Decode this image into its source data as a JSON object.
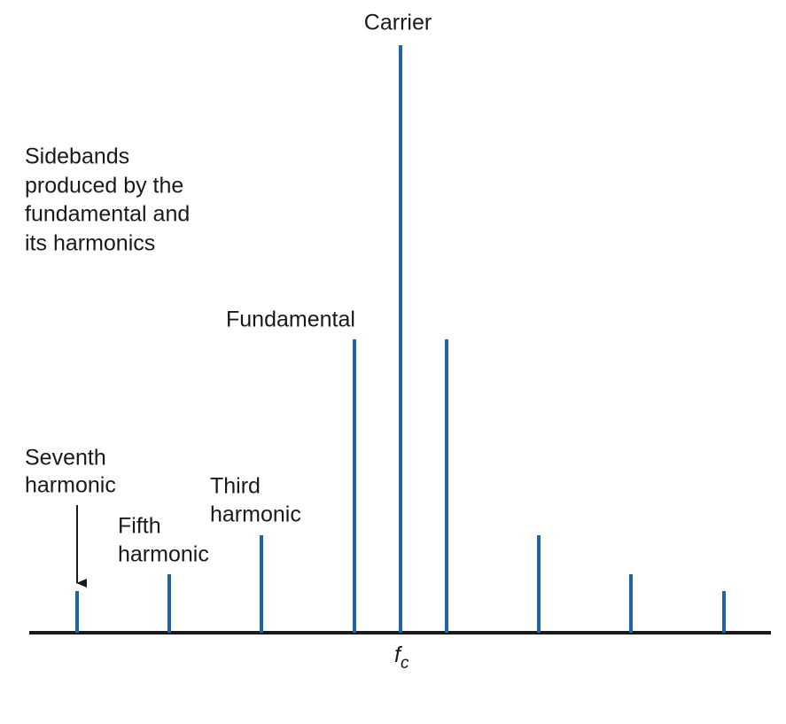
{
  "labels": {
    "carrier": "Carrier",
    "sidebands": [
      "Sidebands",
      "produced by the",
      "fundamental and",
      "its harmonics"
    ],
    "fundamental": "Fundamental",
    "seventh": [
      "Seventh",
      "harmonic"
    ],
    "fifth": [
      "Fifth",
      "harmonic"
    ],
    "third": [
      "Third",
      "harmonic"
    ],
    "axis": {
      "main": "f",
      "sub": "c"
    }
  }
}
